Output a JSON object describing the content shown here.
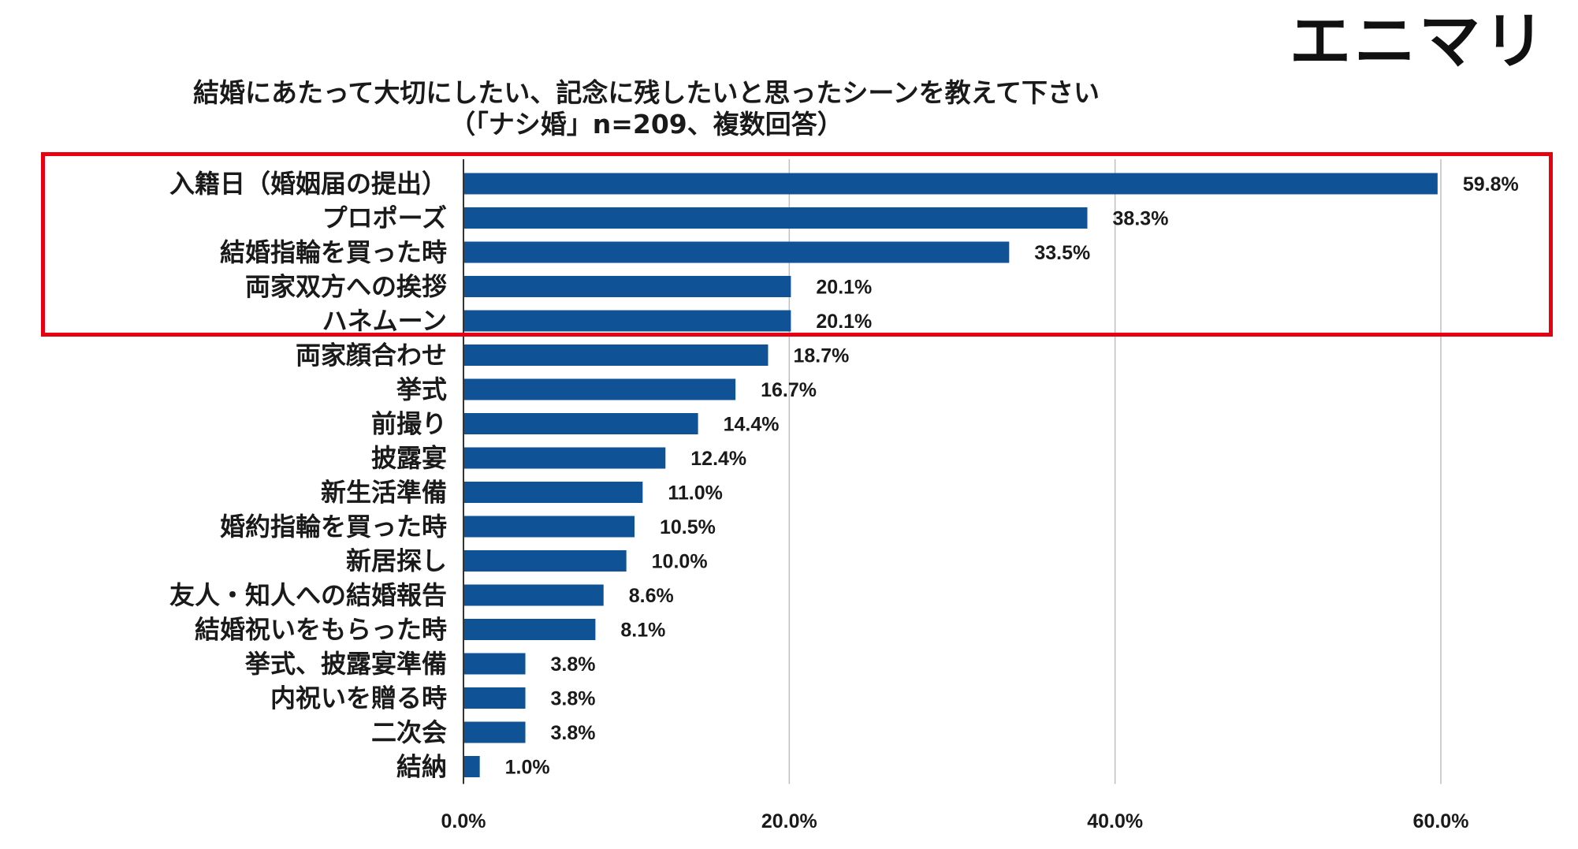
{
  "logo": {
    "text": "エニマリ"
  },
  "title": {
    "line1": "結婚にあたって大切にしたい、記念に残したいと思ったシーンを教えて下さい",
    "line2": "（「ナシ婚」n=209、複数回答）"
  },
  "colors": {
    "bar": "#0F5396",
    "grid": "#BFBFBF",
    "axis": "#333333",
    "highlight": "#E60012"
  },
  "chart_data": {
    "type": "bar",
    "orientation": "horizontal",
    "categories": [
      "入籍日（婚姻届の提出）",
      "プロポーズ",
      "結婚指輪を買った時",
      "両家双方への挨拶",
      "ハネムーン",
      "両家顔合わせ",
      "挙式",
      "前撮り",
      "披露宴",
      "新生活準備",
      "婚約指輪を買った時",
      "新居探し",
      "友人・知人への結婚報告",
      "結婚祝いをもらった時",
      "挙式、披露宴準備",
      "内祝いを贈る時",
      "二次会",
      "結納"
    ],
    "values": [
      59.8,
      38.3,
      33.5,
      20.1,
      20.1,
      18.7,
      16.7,
      14.4,
      12.4,
      11.0,
      10.5,
      10.0,
      8.6,
      8.1,
      3.8,
      3.8,
      3.8,
      1.0
    ],
    "value_labels": [
      "59.8%",
      "38.3%",
      "33.5%",
      "20.1%",
      "20.1%",
      "18.7%",
      "16.7%",
      "14.4%",
      "12.4%",
      "11.0%",
      "10.5%",
      "10.0%",
      "8.6%",
      "8.1%",
      "3.8%",
      "3.8%",
      "3.8%",
      "1.0%"
    ],
    "xlim": [
      0,
      60
    ],
    "xticks": [
      0,
      20,
      40,
      60
    ],
    "xtick_labels": [
      "0.0%",
      "20.0%",
      "40.0%",
      "60.0%"
    ],
    "grid": true,
    "highlighted_categories": [
      0,
      1,
      2,
      3,
      4
    ]
  }
}
